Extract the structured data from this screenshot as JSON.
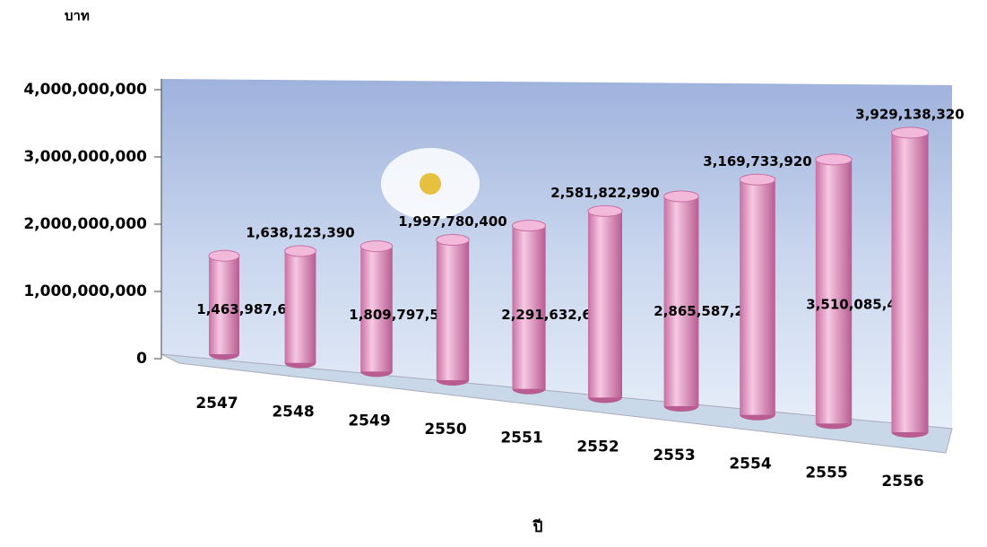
{
  "chart_data": {
    "type": "bar",
    "y_label": "บาท",
    "x_label": "ปี",
    "categories": [
      "2547",
      "2548",
      "2549",
      "2550",
      "2551",
      "2552",
      "2553",
      "2554",
      "2555",
      "2556"
    ],
    "values": [
      1463987610,
      1638123390,
      1809797550,
      1997780400,
      2291632680,
      2581822990,
      2865587200,
      3169733920,
      3510085470,
      3929138320
    ],
    "value_labels": [
      "1,463,987,610",
      "1,638,123,390",
      "1,809,797,550",
      "1,997,780,400",
      "2,291,632,680",
      "2,581,822,990",
      "2,865,587,200",
      "3,169,733,920",
      "3,510,085,470",
      "3,929,138,320"
    ],
    "color": "#e8a0c8",
    "ylim": [
      0,
      4000000000
    ],
    "yticks": [
      {
        "value": 0,
        "label": "0"
      },
      {
        "value": 1000000000,
        "label": "1,000,000,000"
      },
      {
        "value": 2000000000,
        "label": "2,000,000,000"
      },
      {
        "value": 3000000000,
        "label": "3,000,000,000"
      },
      {
        "value": 4000000000,
        "label": "4,000,000,000"
      }
    ]
  }
}
